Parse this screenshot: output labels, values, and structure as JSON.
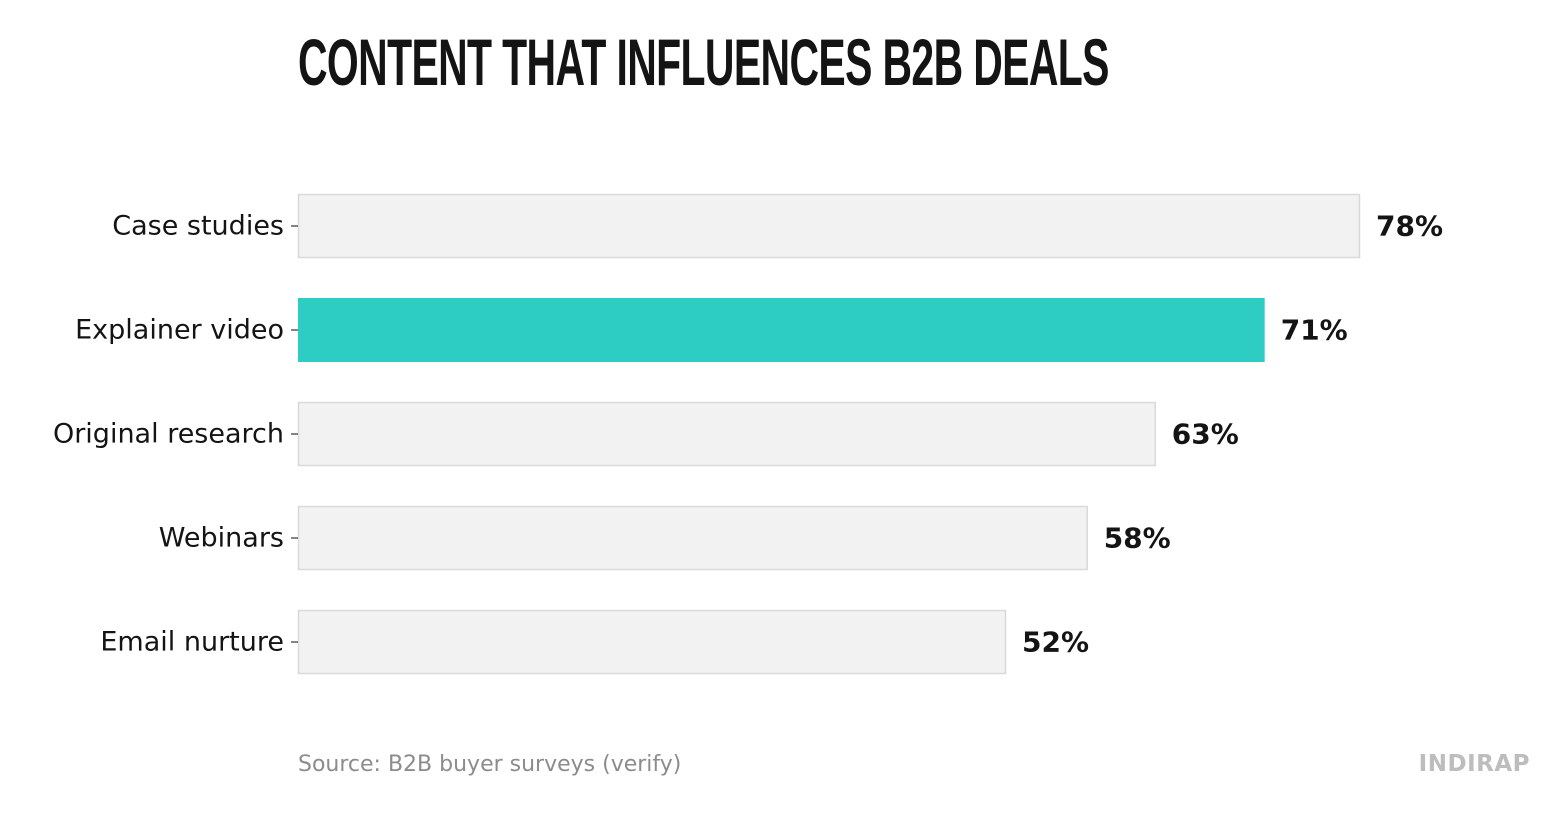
{
  "chart_data": {
    "type": "bar",
    "orientation": "horizontal",
    "title": "Content that influences B2B deals",
    "categories": [
      "Case studies",
      "Explainer video",
      "Original research",
      "Webinars",
      "Email nurture"
    ],
    "values": [
      78,
      71,
      63,
      58,
      52
    ],
    "value_labels": [
      "78%",
      "71%",
      "63%",
      "58%",
      "52%"
    ],
    "highlight": "Explainer video",
    "xlim": [
      0,
      78
    ],
    "grid": false,
    "legend": "none",
    "colors": {
      "highlight": "#2ecdc4",
      "default_fill": "#f2f2f2",
      "default_stroke": "#d9d9d9",
      "text": "#141414"
    }
  },
  "footer": {
    "source": "Source: B2B buyer surveys (verify)",
    "brand": "INDIRAP"
  }
}
